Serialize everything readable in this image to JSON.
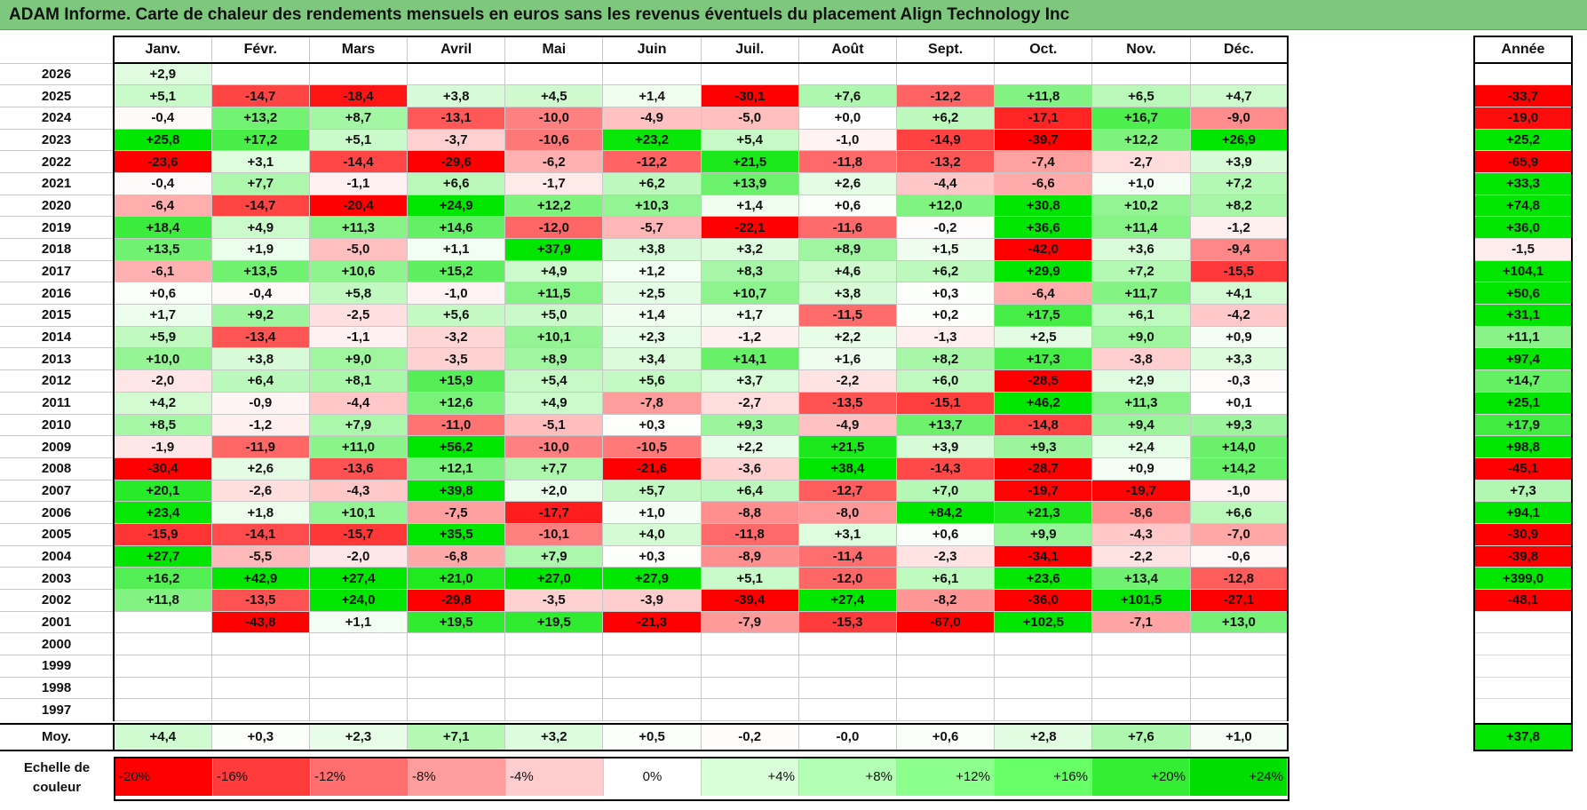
{
  "title": "ADAM Informe. Carte de chaleur des rendements mensuels en euros sans les revenus éventuels du placement Align Technology Inc",
  "chart_data": {
    "type": "heatmap",
    "title": "ADAM Informe. Carte de chaleur des rendements mensuels en euros sans les revenus éventuels du placement Align Technology Inc",
    "months": [
      "Janv.",
      "Févr.",
      "Mars",
      "Avril",
      "Mai",
      "Juin",
      "Juil.",
      "Août",
      "Sept.",
      "Oct.",
      "Nov.",
      "Déc."
    ],
    "year_header": "Année",
    "avg_label": "Moy.",
    "rows": [
      {
        "year": "2026",
        "values": [
          "+2,9",
          "",
          "",
          "",
          "",
          "",
          "",
          "",
          "",
          "",
          "",
          ""
        ],
        "annual": ""
      },
      {
        "year": "2025",
        "values": [
          "+5,1",
          "-14,7",
          "-18,4",
          "+3,8",
          "+4,5",
          "+1,4",
          "-30,1",
          "+7,6",
          "-12,2",
          "+11,8",
          "+6,5",
          "+4,7"
        ],
        "annual": "-33,7"
      },
      {
        "year": "2024",
        "values": [
          "-0,4",
          "+13,2",
          "+8,7",
          "-13,1",
          "-10,0",
          "-4,9",
          "-5,0",
          "+0,0",
          "+6,2",
          "-17,1",
          "+16,7",
          "-9,0"
        ],
        "annual": "-19,0"
      },
      {
        "year": "2023",
        "values": [
          "+25,8",
          "+17,2",
          "+5,1",
          "-3,7",
          "-10,6",
          "+23,2",
          "+5,4",
          "-1,0",
          "-14,9",
          "-39,7",
          "+12,2",
          "+26,9"
        ],
        "annual": "+25,2"
      },
      {
        "year": "2022",
        "values": [
          "-23,6",
          "+3,1",
          "-14,4",
          "-29,6",
          "-6,2",
          "-12,2",
          "+21,5",
          "-11,8",
          "-13,2",
          "-7,4",
          "-2,7",
          "+3,9"
        ],
        "annual": "-65,9"
      },
      {
        "year": "2021",
        "values": [
          "-0,4",
          "+7,7",
          "-1,1",
          "+6,6",
          "-1,7",
          "+6,2",
          "+13,9",
          "+2,6",
          "-4,4",
          "-6,6",
          "+1,0",
          "+7,2"
        ],
        "annual": "+33,3"
      },
      {
        "year": "2020",
        "values": [
          "-6,4",
          "-14,7",
          "-20,4",
          "+24,9",
          "+12,2",
          "+10,3",
          "+1,4",
          "+0,6",
          "+12,0",
          "+30,8",
          "+10,2",
          "+8,2"
        ],
        "annual": "+74,8"
      },
      {
        "year": "2019",
        "values": [
          "+18,4",
          "+4,9",
          "+11,3",
          "+14,6",
          "-12,0",
          "-5,7",
          "-22,1",
          "-11,6",
          "-0,2",
          "+36,6",
          "+11,4",
          "-1,2"
        ],
        "annual": "+36,0"
      },
      {
        "year": "2018",
        "values": [
          "+13,5",
          "+1,9",
          "-5,0",
          "+1,1",
          "+37,9",
          "+3,8",
          "+3,2",
          "+8,9",
          "+1,5",
          "-42,0",
          "+3,6",
          "-9,4"
        ],
        "annual": "-1,5"
      },
      {
        "year": "2017",
        "values": [
          "-6,1",
          "+13,5",
          "+10,6",
          "+15,2",
          "+4,9",
          "+1,2",
          "+8,3",
          "+4,6",
          "+6,2",
          "+29,9",
          "+7,2",
          "-15,5"
        ],
        "annual": "+104,1"
      },
      {
        "year": "2016",
        "values": [
          "+0,6",
          "-0,4",
          "+5,8",
          "-1,0",
          "+11,5",
          "+2,5",
          "+10,7",
          "+3,8",
          "+0,3",
          "-6,4",
          "+11,7",
          "+4,1"
        ],
        "annual": "+50,6"
      },
      {
        "year": "2015",
        "values": [
          "+1,7",
          "+9,2",
          "-2,5",
          "+5,6",
          "+5,0",
          "+1,4",
          "+1,7",
          "-11,5",
          "+0,2",
          "+17,5",
          "+6,1",
          "-4,2"
        ],
        "annual": "+31,1"
      },
      {
        "year": "2014",
        "values": [
          "+5,9",
          "-13,4",
          "-1,1",
          "-3,2",
          "+10,1",
          "+2,3",
          "-1,2",
          "+2,2",
          "-1,3",
          "+2,5",
          "+9,0",
          "+0,9"
        ],
        "annual": "+11,1"
      },
      {
        "year": "2013",
        "values": [
          "+10,0",
          "+3,8",
          "+9,0",
          "-3,5",
          "+8,9",
          "+3,4",
          "+14,1",
          "+1,6",
          "+8,2",
          "+17,3",
          "-3,8",
          "+3,3"
        ],
        "annual": "+97,4"
      },
      {
        "year": "2012",
        "values": [
          "-2,0",
          "+6,4",
          "+8,1",
          "+15,9",
          "+5,4",
          "+5,6",
          "+3,7",
          "-2,2",
          "+6,0",
          "-28,5",
          "+2,9",
          "-0,3"
        ],
        "annual": "+14,7"
      },
      {
        "year": "2011",
        "values": [
          "+4,2",
          "-0,9",
          "-4,4",
          "+12,6",
          "+4,9",
          "-7,8",
          "-2,7",
          "-13,5",
          "-15,1",
          "+46,2",
          "+11,3",
          "+0,1"
        ],
        "annual": "+25,1"
      },
      {
        "year": "2010",
        "values": [
          "+8,5",
          "-1,2",
          "+7,9",
          "-11,0",
          "-5,1",
          "+0,3",
          "+9,3",
          "-4,9",
          "+13,7",
          "-14,8",
          "+9,4",
          "+9,3"
        ],
        "annual": "+17,9"
      },
      {
        "year": "2009",
        "values": [
          "-1,9",
          "-11,9",
          "+11,0",
          "+56,2",
          "-10,0",
          "-10,5",
          "+2,2",
          "+21,5",
          "+3,9",
          "+9,3",
          "+2,4",
          "+14,0"
        ],
        "annual": "+98,8"
      },
      {
        "year": "2008",
        "values": [
          "-30,4",
          "+2,6",
          "-13,6",
          "+12,1",
          "+7,7",
          "-21,6",
          "-3,6",
          "+38,4",
          "-14,3",
          "-28,7",
          "+0,9",
          "+14,2"
        ],
        "annual": "-45,1"
      },
      {
        "year": "2007",
        "values": [
          "+20,1",
          "-2,6",
          "-4,3",
          "+39,8",
          "+2,0",
          "+5,7",
          "+6,4",
          "-12,7",
          "+7,0",
          "-19,7",
          "-19,7",
          "-1,0"
        ],
        "annual": "+7,3"
      },
      {
        "year": "2006",
        "values": [
          "+23,4",
          "+1,8",
          "+10,1",
          "-7,5",
          "-17,7",
          "+1,0",
          "-8,8",
          "-8,0",
          "+84,2",
          "+21,3",
          "-8,6",
          "+6,6"
        ],
        "annual": "+94,1"
      },
      {
        "year": "2005",
        "values": [
          "-15,9",
          "-14,1",
          "-15,7",
          "+35,5",
          "-10,1",
          "+4,0",
          "-11,8",
          "+3,1",
          "+0,6",
          "+9,9",
          "-4,3",
          "-7,0"
        ],
        "annual": "-30,9"
      },
      {
        "year": "2004",
        "values": [
          "+27,7",
          "-5,5",
          "-2,0",
          "-6,8",
          "+7,9",
          "+0,3",
          "-8,9",
          "-11,4",
          "-2,3",
          "-34,1",
          "-2,2",
          "-0,6"
        ],
        "annual": "-39,8"
      },
      {
        "year": "2003",
        "values": [
          "+16,2",
          "+42,9",
          "+27,4",
          "+21,0",
          "+27,0",
          "+27,9",
          "+5,1",
          "-12,0",
          "+6,1",
          "+23,6",
          "+13,4",
          "-12,8"
        ],
        "annual": "+399,0"
      },
      {
        "year": "2002",
        "values": [
          "+11,8",
          "-13,5",
          "+24,0",
          "-29,8",
          "-3,5",
          "-3,9",
          "-39,4",
          "+27,4",
          "-8,2",
          "-36,0",
          "+101,5",
          "-27,1"
        ],
        "annual": "-48,1"
      },
      {
        "year": "2001",
        "values": [
          "",
          "-43,8",
          "+1,1",
          "+19,5",
          "+19,5",
          "-21,3",
          "-7,9",
          "-15,3",
          "-67,0",
          "+102,5",
          "-7,1",
          "+13,0"
        ],
        "annual": ""
      },
      {
        "year": "2000",
        "values": [
          "",
          "",
          "",
          "",
          "",
          "",
          "",
          "",
          "",
          "",
          "",
          ""
        ],
        "annual": ""
      },
      {
        "year": "1999",
        "values": [
          "",
          "",
          "",
          "",
          "",
          "",
          "",
          "",
          "",
          "",
          "",
          ""
        ],
        "annual": ""
      },
      {
        "year": "1998",
        "values": [
          "",
          "",
          "",
          "",
          "",
          "",
          "",
          "",
          "",
          "",
          "",
          ""
        ],
        "annual": ""
      },
      {
        "year": "1997",
        "values": [
          "",
          "",
          "",
          "",
          "",
          "",
          "",
          "",
          "",
          "",
          "",
          ""
        ],
        "annual": ""
      }
    ],
    "averages": [
      "+4,4",
      "+0,3",
      "+2,3",
      "+7,1",
      "+3,2",
      "+0,5",
      "-0,2",
      "-0,0",
      "+0,6",
      "+2,8",
      "+7,6",
      "+1,0"
    ],
    "avg_annual": "+37,8",
    "scale_label": "Echelle de couleur",
    "scale": [
      {
        "label": "-20%",
        "value": -20,
        "color": "#ff0000"
      },
      {
        "label": "-16%",
        "value": -16,
        "color": "#ff3b3b"
      },
      {
        "label": "-12%",
        "value": -12,
        "color": "#ff6e6e"
      },
      {
        "label": "-8%",
        "value": -8,
        "color": "#ff9d9d"
      },
      {
        "label": "-4%",
        "value": -4,
        "color": "#ffcdcd"
      },
      {
        "label": "0%",
        "value": 0,
        "color": "#ffffff"
      },
      {
        "label": "+4%",
        "value": 4,
        "color": "#d9ffd9"
      },
      {
        "label": "+8%",
        "value": 8,
        "color": "#b3ffb3"
      },
      {
        "label": "+12%",
        "value": 12,
        "color": "#8cff8c"
      },
      {
        "label": "+16%",
        "value": 16,
        "color": "#66ff66"
      },
      {
        "label": "+20%",
        "value": 20,
        "color": "#33ee33"
      },
      {
        "label": "+24%",
        "value": 24,
        "color": "#00dd00"
      }
    ]
  }
}
